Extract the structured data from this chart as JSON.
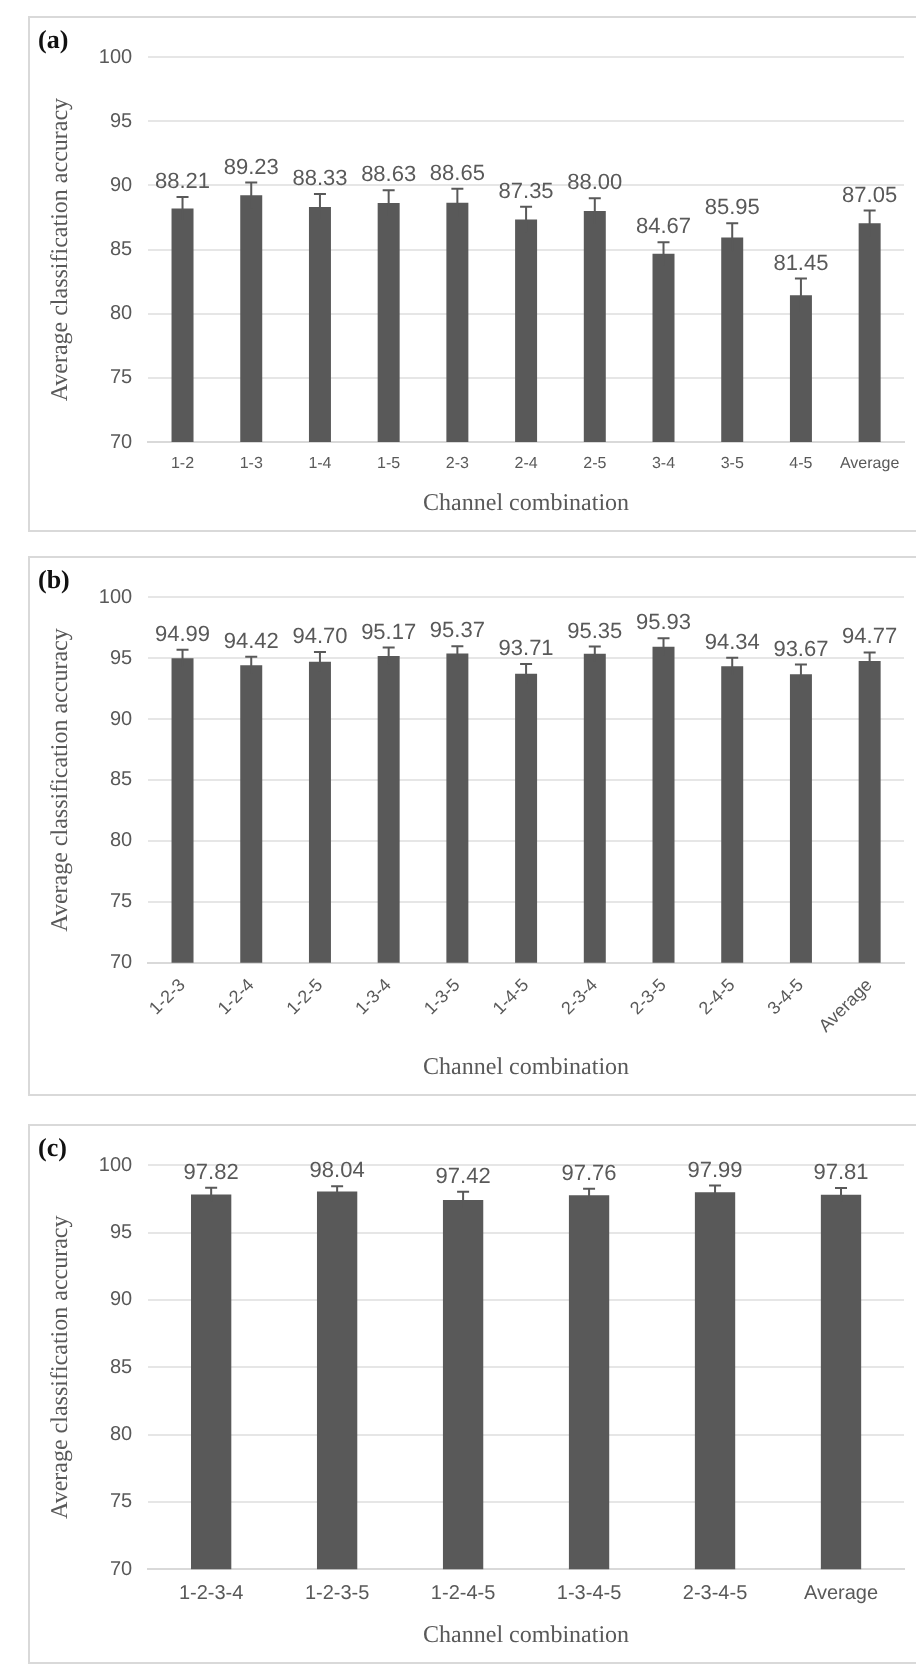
{
  "chart_data": [
    {
      "type": "bar",
      "title": "(a)",
      "xlabel": "Channel combination",
      "ylabel": "Average classification accuracy",
      "categories": [
        "1-2",
        "1-3",
        "1-4",
        "1-5",
        "2-3",
        "2-4",
        "2-5",
        "3-4",
        "3-5",
        "4-5",
        "Average"
      ],
      "values": [
        88.21,
        89.23,
        88.33,
        88.63,
        88.65,
        87.35,
        88.0,
        84.67,
        85.95,
        81.45,
        87.05
      ],
      "value_labels": [
        "88.21",
        "89.23",
        "88.33",
        "88.63",
        "88.65",
        "87.35",
        "88.00",
        "84.67",
        "85.95",
        "81.45",
        "87.05"
      ],
      "errors": [
        0.9,
        1.0,
        1.0,
        1.0,
        1.1,
        1.0,
        1.0,
        0.9,
        1.1,
        1.3,
        1.0
      ],
      "color": "#595959",
      "ylim": [
        70,
        100
      ],
      "yticks": [
        70,
        75,
        80,
        85,
        90,
        95,
        100
      ],
      "grid": "y"
    },
    {
      "type": "bar",
      "title": "(b)",
      "xlabel": "Channel combination",
      "ylabel": "Average classification accuracy",
      "categories": [
        "1-2-3",
        "1-2-4",
        "1-2-5",
        "1-3-4",
        "1-3-5",
        "1-4-5",
        "2-3-4",
        "2-3-5",
        "2-4-5",
        "3-4-5",
        "Average"
      ],
      "values": [
        94.99,
        94.42,
        94.7,
        95.17,
        95.37,
        93.71,
        95.35,
        95.93,
        94.34,
        93.67,
        94.77
      ],
      "value_labels": [
        "94.99",
        "94.42",
        "94.70",
        "95.17",
        "95.37",
        "93.71",
        "95.35",
        "95.93",
        "94.34",
        "93.67",
        "94.77"
      ],
      "errors": [
        0.7,
        0.7,
        0.8,
        0.7,
        0.6,
        0.8,
        0.6,
        0.7,
        0.7,
        0.8,
        0.7
      ],
      "color": "#595959",
      "ylim": [
        70,
        100
      ],
      "yticks": [
        70,
        75,
        80,
        85,
        90,
        95,
        100
      ],
      "grid": "y"
    },
    {
      "type": "bar",
      "title": "(c)",
      "xlabel": "Channel combination",
      "ylabel": "Average classification accuracy",
      "categories": [
        "1-2-3-4",
        "1-2-3-5",
        "1-2-4-5",
        "1-3-4-5",
        "2-3-4-5",
        "Average"
      ],
      "values": [
        97.82,
        98.04,
        97.42,
        97.76,
        97.99,
        97.81
      ],
      "value_labels": [
        "97.82",
        "98.04",
        "97.42",
        "97.76",
        "97.99",
        "97.81"
      ],
      "errors": [
        0.5,
        0.4,
        0.6,
        0.5,
        0.5,
        0.5
      ],
      "color": "#595959",
      "ylim": [
        70,
        100
      ],
      "yticks": [
        70,
        75,
        80,
        85,
        90,
        95,
        100
      ],
      "grid": "y"
    }
  ]
}
